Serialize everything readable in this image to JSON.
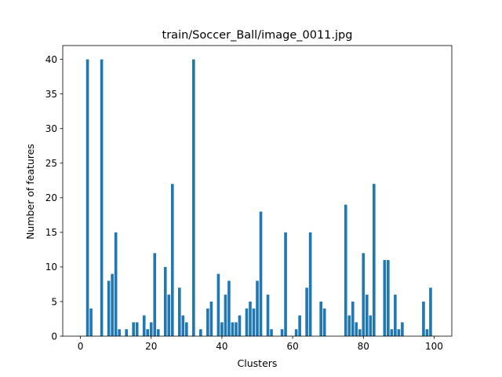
{
  "chart_data": {
    "type": "bar",
    "title": "train/Soccer_Ball/image_0011.jpg",
    "xlabel": "Clusters",
    "ylabel": "Number of features",
    "xlim": [
      -5,
      105
    ],
    "ylim": [
      0,
      42
    ],
    "xticks": [
      0,
      20,
      40,
      60,
      80,
      100
    ],
    "yticks": [
      0,
      5,
      10,
      15,
      20,
      25,
      30,
      35,
      40
    ],
    "grid": false,
    "color": "#1f77b4",
    "x": [
      2,
      3,
      6,
      8,
      9,
      10,
      11,
      13,
      15,
      16,
      18,
      19,
      20,
      21,
      22,
      24,
      25,
      26,
      28,
      29,
      30,
      32,
      34,
      36,
      37,
      39,
      40,
      41,
      42,
      43,
      44,
      45,
      47,
      48,
      49,
      50,
      51,
      53,
      54,
      57,
      58,
      61,
      62,
      64,
      65,
      68,
      69,
      75,
      76,
      77,
      78,
      79,
      80,
      81,
      82,
      83,
      86,
      87,
      88,
      89,
      90,
      91,
      97,
      98,
      99
    ],
    "values": [
      40,
      4,
      40,
      8,
      9,
      15,
      1,
      1,
      2,
      2,
      3,
      1,
      2,
      12,
      1,
      10,
      6,
      22,
      7,
      3,
      2,
      40,
      1,
      4,
      5,
      9,
      2,
      6,
      8,
      2,
      2,
      3,
      4,
      5,
      4,
      8,
      18,
      6,
      1,
      1,
      15,
      1,
      3,
      7,
      15,
      5,
      4,
      19,
      3,
      5,
      2,
      1,
      12,
      6,
      3,
      22,
      11,
      11,
      1,
      6,
      1,
      2,
      5,
      1,
      7
    ]
  }
}
